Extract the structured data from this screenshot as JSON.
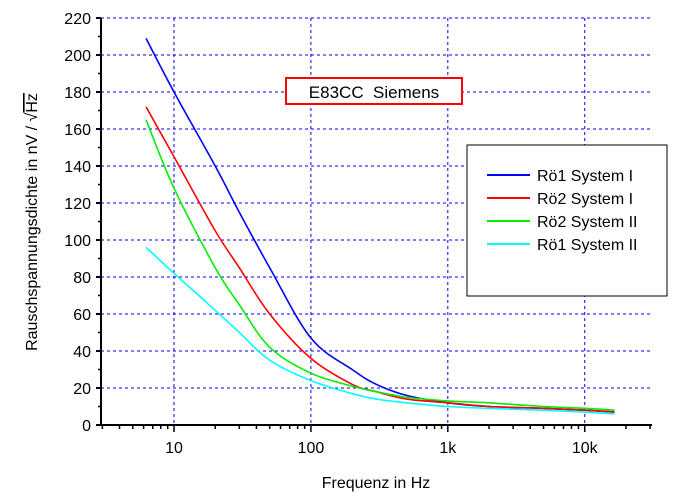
{
  "chart_data": {
    "type": "line",
    "title": "E83CC  Siemens",
    "xlabel": "Frequenz in Hz",
    "ylabel_prefix": "Rauschspannungsdichte in nV / ",
    "ylabel_sqrt": "√",
    "ylabel_unit": "Hz",
    "xscale": "log",
    "xlim": [
      2.93,
      31000
    ],
    "ylim": [
      0,
      220
    ],
    "grid": true,
    "legend_position": "right",
    "xticks": [
      {
        "v": 10,
        "label": "10"
      },
      {
        "v": 100,
        "label": "100"
      },
      {
        "v": 1000,
        "label": "1k"
      },
      {
        "v": 10000,
        "label": "10k"
      }
    ],
    "yticks": [
      0,
      20,
      40,
      60,
      80,
      100,
      120,
      140,
      160,
      180,
      200,
      220
    ],
    "x": [
      6.25,
      10,
      20,
      30,
      50,
      100,
      200,
      300,
      500,
      1000,
      2000,
      5000,
      10000,
      16500
    ],
    "series": [
      {
        "name": "Rö1 System I",
        "color": "#0000ff",
        "values": [
          209,
          180,
          140,
          115,
          85,
          47,
          30,
          22,
          16,
          12,
          10,
          9,
          8,
          7
        ]
      },
      {
        "name": "Rö2 System I",
        "color": "#ff0000",
        "values": [
          172,
          145,
          105,
          85,
          60,
          36,
          22,
          18,
          14,
          12,
          10,
          9,
          8,
          7
        ]
      },
      {
        "name": "Rö2 System II",
        "color": "#00ee00",
        "values": [
          165,
          128,
          85,
          65,
          42,
          28,
          21,
          18,
          15,
          13,
          12,
          10,
          9,
          8
        ]
      },
      {
        "name": "Rö1 System II",
        "color": "#00ffff",
        "values": [
          96,
          82,
          62,
          50,
          35,
          24,
          17,
          14,
          12,
          10,
          9,
          8,
          7,
          6
        ]
      }
    ]
  }
}
